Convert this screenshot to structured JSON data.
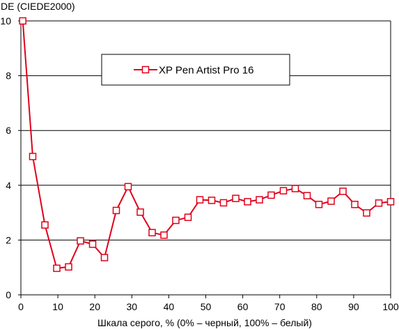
{
  "chart_data": {
    "type": "line",
    "ylabel": "DE (CIEDE2000)",
    "xlabel": "Шкала серого, % (0% – черный, 100% – белый)",
    "xlim": [
      0,
      100
    ],
    "ylim": [
      0,
      10
    ],
    "x_ticks": [
      0,
      10,
      20,
      30,
      40,
      50,
      60,
      70,
      80,
      90,
      100
    ],
    "y_ticks": [
      0,
      2,
      4,
      6,
      8,
      10
    ],
    "grid": "horizontal",
    "legend_position": "top-center",
    "series": [
      {
        "name": "XP Pen Artist Pro 16",
        "color": "#e0001a",
        "marker": "square-open",
        "x": [
          0.5,
          3.2,
          6.5,
          9.7,
          12.9,
          16.1,
          19.4,
          22.6,
          25.8,
          29.0,
          32.3,
          35.5,
          38.7,
          41.9,
          45.2,
          48.4,
          51.6,
          54.8,
          58.1,
          61.3,
          64.5,
          67.7,
          71.0,
          74.2,
          77.4,
          80.6,
          83.9,
          87.1,
          90.3,
          93.5,
          96.8,
          100
        ],
        "y": [
          10.0,
          5.05,
          2.55,
          0.97,
          1.02,
          1.97,
          1.85,
          1.36,
          3.08,
          3.95,
          3.02,
          2.27,
          2.18,
          2.72,
          2.83,
          3.47,
          3.45,
          3.36,
          3.52,
          3.4,
          3.47,
          3.64,
          3.8,
          3.88,
          3.62,
          3.3,
          3.42,
          3.78,
          3.3,
          2.99,
          3.35,
          3.4
        ]
      }
    ]
  }
}
